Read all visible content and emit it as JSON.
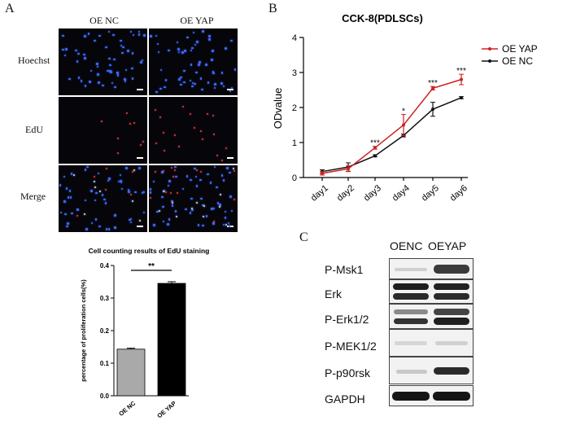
{
  "panel_labels": {
    "a": "A",
    "b": "B",
    "c": "C"
  },
  "panel_a": {
    "columns": [
      "OE NC",
      "OE YAP"
    ],
    "rows": [
      "Hoechst",
      "EdU",
      "Merge"
    ]
  },
  "bar_chart": {
    "title": "Cell counting results of EdU staining",
    "significance": "**",
    "color_nc": "#a9a9a9",
    "color_yap": "#000000"
  },
  "line_chart": {
    "title": "CCK-8(PDLSCs)",
    "significance": [
      "***",
      "*",
      "***",
      "***"
    ],
    "color_yap": "#cc2222",
    "color_nc": "#111111"
  },
  "blot": {
    "columns": [
      "OENC",
      "OEYAP"
    ],
    "rows": [
      "P-Msk1",
      "Erk",
      "P-Erk1/2",
      "P-MEK1/2",
      "P-p90rsk",
      "GAPDH"
    ]
  },
  "chart_data": [
    {
      "type": "bar",
      "title": "Cell counting results of EdU staining",
      "categories": [
        "OE NC",
        "OE YAP"
      ],
      "values": [
        0.143,
        0.345
      ],
      "errors": [
        0.003,
        0.005
      ],
      "xlabel": "",
      "ylabel": "percentage of proliferation cells(%)",
      "ylim": [
        0,
        0.4
      ],
      "yticks": [
        "0.0",
        "0.1",
        "0.2",
        "0.3",
        "0.4"
      ]
    },
    {
      "type": "line",
      "title": "CCK-8(PDLSCs)",
      "categories": [
        "day1",
        "day2",
        "day3",
        "day4",
        "day5",
        "day6"
      ],
      "series": [
        {
          "name": "OE YAP",
          "values": [
            0.12,
            0.25,
            0.85,
            1.5,
            2.55,
            2.8
          ],
          "errors": [
            0.05,
            0.08,
            0.04,
            0.3,
            0.05,
            0.15
          ]
        },
        {
          "name": "OE NC",
          "values": [
            0.17,
            0.3,
            0.62,
            1.2,
            1.95,
            2.28
          ],
          "errors": [
            0.05,
            0.12,
            0.03,
            0.04,
            0.2,
            0.03
          ]
        }
      ],
      "xlabel": "",
      "ylabel": "ODvalue",
      "ylim": [
        0,
        4
      ],
      "yticks": [
        "0",
        "1",
        "2",
        "3",
        "4"
      ],
      "legend": "top-right"
    }
  ]
}
